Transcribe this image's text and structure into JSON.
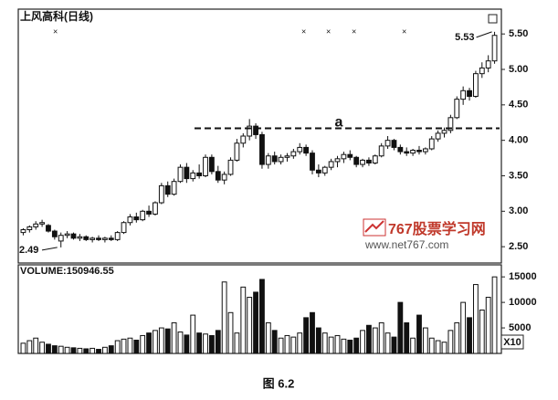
{
  "chart_data": {
    "type": "candlestick",
    "title": "上风高科(日线)",
    "volume_title": "VOLUME:150946.55",
    "volume_unit": "X10",
    "caption": "图 6.2",
    "watermark": "767股票学习网",
    "watermark_url": "www.net767.com",
    "high_label": 5.53,
    "low_label": 2.49,
    "resistance": {
      "label": "a",
      "value": 4.17
    },
    "ylim": [
      2.27,
      5.85
    ],
    "yticks": [
      {
        "value": 2.5,
        "label": "2.50"
      },
      {
        "value": 3,
        "label": "3.00"
      },
      {
        "value": 3.5,
        "label": "3.50"
      },
      {
        "value": 4,
        "label": "4.00"
      },
      {
        "value": 4.5,
        "label": "4.50"
      },
      {
        "value": 5,
        "label": "5.00"
      },
      {
        "value": 5.5,
        "label": "5.50"
      }
    ],
    "y2lim": [
      0,
      17000
    ],
    "y2ticks": [
      5000,
      10000,
      15000
    ],
    "open": [
      2.7,
      2.74,
      2.78,
      2.82,
      2.8,
      2.72,
      2.58,
      2.66,
      2.68,
      2.62,
      2.64,
      2.6,
      2.62,
      2.6,
      2.62,
      2.6,
      2.7,
      2.84,
      2.92,
      2.88,
      3.0,
      2.96,
      3.12,
      3.36,
      3.24,
      3.42,
      3.62,
      3.46,
      3.54,
      3.5,
      3.76,
      3.56,
      3.44,
      3.52,
      3.72,
      3.96,
      4.06,
      4.2,
      4.08,
      3.66,
      3.78,
      3.7,
      3.76,
      3.78,
      3.84,
      3.9,
      3.82,
      3.58,
      3.54,
      3.62,
      3.7,
      3.74,
      3.8,
      3.76,
      3.66,
      3.72,
      3.68,
      3.78,
      3.92,
      4.0,
      3.9,
      3.84,
      3.82,
      3.86,
      3.84,
      3.88,
      4.02,
      4.1,
      4.14,
      4.32,
      4.58,
      4.7,
      4.62,
      4.94,
      5.02,
      5.12
    ],
    "high": [
      2.76,
      2.8,
      2.86,
      2.88,
      2.82,
      2.74,
      2.7,
      2.72,
      2.7,
      2.68,
      2.66,
      2.64,
      2.66,
      2.64,
      2.66,
      2.72,
      2.86,
      2.96,
      2.98,
      3.02,
      3.08,
      3.14,
      3.4,
      3.42,
      3.46,
      3.66,
      3.68,
      3.58,
      3.66,
      3.8,
      3.8,
      3.64,
      3.56,
      3.76,
      4.02,
      4.1,
      4.3,
      4.24,
      4.12,
      3.82,
      3.84,
      3.8,
      3.82,
      3.88,
      3.96,
      3.94,
      3.86,
      3.66,
      3.64,
      3.74,
      3.78,
      3.84,
      3.86,
      3.78,
      3.74,
      3.76,
      3.8,
      3.96,
      4.06,
      4.02,
      3.94,
      3.9,
      3.88,
      3.92,
      3.9,
      4.06,
      4.14,
      4.18,
      4.36,
      4.62,
      4.76,
      4.74,
      4.98,
      5.1,
      5.2,
      5.53
    ],
    "low": [
      2.66,
      2.7,
      2.74,
      2.78,
      2.7,
      2.6,
      2.49,
      2.62,
      2.6,
      2.58,
      2.58,
      2.56,
      2.58,
      2.56,
      2.58,
      2.58,
      2.68,
      2.8,
      2.84,
      2.86,
      2.92,
      2.94,
      3.1,
      3.2,
      3.22,
      3.4,
      3.4,
      3.42,
      3.46,
      3.48,
      3.52,
      3.4,
      3.38,
      3.5,
      3.7,
      3.9,
      4.0,
      4.02,
      3.6,
      3.6,
      3.66,
      3.66,
      3.7,
      3.74,
      3.8,
      3.78,
      3.52,
      3.48,
      3.5,
      3.58,
      3.62,
      3.68,
      3.72,
      3.62,
      3.62,
      3.64,
      3.66,
      3.76,
      3.88,
      3.86,
      3.8,
      3.78,
      3.78,
      3.8,
      3.8,
      3.86,
      3.98,
      4.04,
      4.1,
      4.3,
      4.5,
      4.56,
      4.6,
      4.88,
      4.96,
      5.08
    ],
    "close": [
      2.74,
      2.78,
      2.82,
      2.84,
      2.72,
      2.64,
      2.66,
      2.68,
      2.62,
      2.64,
      2.6,
      2.62,
      2.6,
      2.62,
      2.6,
      2.7,
      2.84,
      2.92,
      2.88,
      3.0,
      2.96,
      3.12,
      3.36,
      3.24,
      3.42,
      3.62,
      3.46,
      3.54,
      3.5,
      3.76,
      3.56,
      3.44,
      3.52,
      3.72,
      3.96,
      4.06,
      4.2,
      4.08,
      3.66,
      3.78,
      3.7,
      3.76,
      3.78,
      3.84,
      3.9,
      3.82,
      3.58,
      3.54,
      3.62,
      3.7,
      3.74,
      3.8,
      3.76,
      3.66,
      3.72,
      3.68,
      3.78,
      3.92,
      4.0,
      3.9,
      3.84,
      3.82,
      3.86,
      3.84,
      3.88,
      4.02,
      4.1,
      4.14,
      4.32,
      4.58,
      4.7,
      4.62,
      4.94,
      5.02,
      5.12,
      5.48
    ],
    "volume": [
      2000,
      2500,
      3000,
      2200,
      1800,
      1500,
      1400,
      1200,
      1100,
      1000,
      900,
      1000,
      800,
      1200,
      1500,
      2500,
      2800,
      3000,
      2600,
      3500,
      4000,
      4500,
      5000,
      4800,
      6000,
      4200,
      3600,
      7500,
      4000,
      3800,
      3500,
      4500,
      14000,
      8000,
      4000,
      13000,
      11000,
      12000,
      14500,
      6000,
      4500,
      3000,
      3500,
      3200,
      4000,
      7000,
      8000,
      5000,
      4000,
      3200,
      3500,
      2800,
      2600,
      3000,
      4500,
      5500,
      5000,
      6000,
      4000,
      3200,
      10000,
      6000,
      3000,
      7500,
      5000,
      3000,
      2500,
      2200,
      4500,
      6000,
      10000,
      7000,
      13500,
      8500,
      11000,
      15000
    ]
  }
}
